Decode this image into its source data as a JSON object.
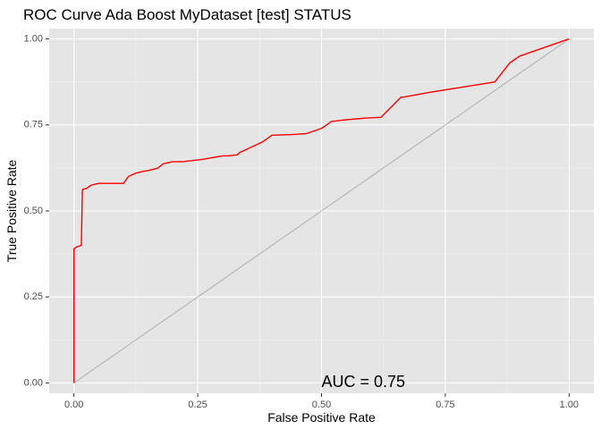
{
  "chart_data": {
    "type": "line",
    "title": "ROC Curve Ada Boost MyDataset [test] STATUS",
    "xlabel": "False Positive Rate",
    "ylabel": "True Positive Rate",
    "xlim": [
      -0.05,
      1.05
    ],
    "ylim": [
      -0.03,
      1.03
    ],
    "x_ticks": [
      0.0,
      0.25,
      0.5,
      0.75,
      1.0
    ],
    "x_tick_labels": [
      "0.00",
      "0.25",
      "0.50",
      "0.75",
      "1.00"
    ],
    "y_ticks": [
      0.0,
      0.25,
      0.5,
      0.75,
      1.0
    ],
    "y_tick_labels": [
      "0.00",
      "0.25",
      "0.50",
      "0.75",
      "1.00"
    ],
    "grid": true,
    "background": "#e5e5e5",
    "series": [
      {
        "color": "#ff0000",
        "x": [
          0.0,
          0.0,
          0.005,
          0.015,
          0.017,
          0.018,
          0.025,
          0.035,
          0.05,
          0.07,
          0.1,
          0.11,
          0.125,
          0.14,
          0.15,
          0.17,
          0.18,
          0.19,
          0.2,
          0.22,
          0.26,
          0.28,
          0.3,
          0.31,
          0.33,
          0.335,
          0.35,
          0.38,
          0.4,
          0.44,
          0.47,
          0.5,
          0.52,
          0.55,
          0.59,
          0.62,
          0.66,
          0.67,
          0.7,
          0.72,
          0.85,
          0.88,
          0.9,
          1.0
        ],
        "y": [
          0.0,
          0.39,
          0.395,
          0.4,
          0.56,
          0.563,
          0.565,
          0.575,
          0.58,
          0.58,
          0.58,
          0.6,
          0.61,
          0.615,
          0.617,
          0.625,
          0.637,
          0.64,
          0.643,
          0.643,
          0.65,
          0.655,
          0.66,
          0.66,
          0.663,
          0.67,
          0.68,
          0.7,
          0.72,
          0.722,
          0.725,
          0.74,
          0.76,
          0.765,
          0.77,
          0.772,
          0.83,
          0.832,
          0.84,
          0.845,
          0.875,
          0.93,
          0.95,
          1.0
        ]
      },
      {
        "color": "#b3b3b3",
        "x": [
          0.0,
          1.0
        ],
        "y": [
          0.0,
          1.0
        ]
      }
    ],
    "annotations": [
      {
        "text": "AUC = 0.75",
        "x": 0.5,
        "y": 0.0
      }
    ]
  }
}
